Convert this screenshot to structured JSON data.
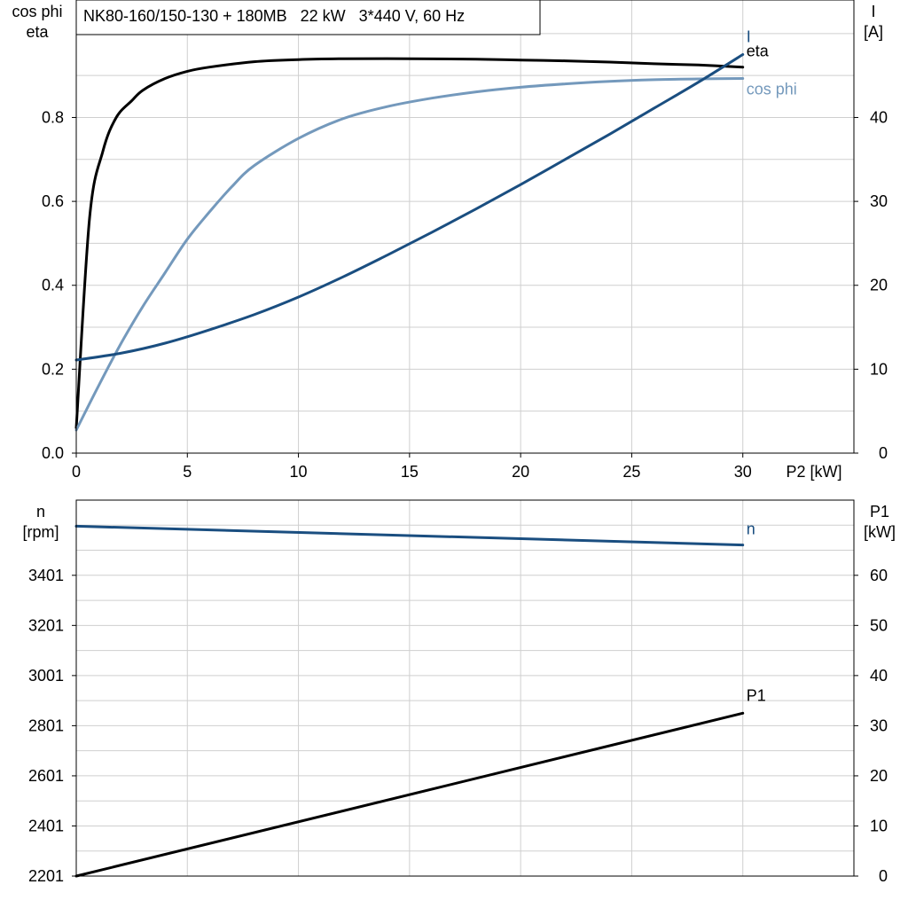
{
  "chart_data": [
    {
      "type": "line",
      "title": "NK80-160/150-130 + 180MB   22 kW   3*440 V, 60 Hz",
      "xlabel": "P2 [kW]",
      "ylabel_left": [
        "cos phi",
        "eta"
      ],
      "ylabel_right": [
        "I",
        "[A]"
      ],
      "xlim": [
        0,
        35
      ],
      "ylim_left": [
        0,
        1.08
      ],
      "ylim_right": [
        0,
        54
      ],
      "x_ticks": [
        "0",
        "5",
        "10",
        "15",
        "20",
        "25",
        "30"
      ],
      "y_ticks_left": [
        "0.0",
        "0.2",
        "0.4",
        "0.6",
        "0.8"
      ],
      "y_ticks_right": [
        "0",
        "10",
        "20",
        "30",
        "40"
      ],
      "grid": true,
      "series": [
        {
          "name": "eta",
          "color": "#000000",
          "axis": "left",
          "x": [
            0,
            0.6,
            1.2,
            1.8,
            2.5,
            3,
            4,
            5,
            6,
            8,
            10,
            12,
            15,
            18,
            20,
            22,
            24,
            26,
            28,
            30
          ],
          "y": [
            0.06,
            0.56,
            0.72,
            0.8,
            0.84,
            0.865,
            0.893,
            0.91,
            0.92,
            0.933,
            0.938,
            0.94,
            0.94,
            0.939,
            0.937,
            0.935,
            0.932,
            0.928,
            0.925,
            0.92
          ]
        },
        {
          "name": "cos phi",
          "color": "#7499bc",
          "axis": "left",
          "x": [
            0,
            1,
            2,
            3,
            4,
            5,
            6,
            7,
            8,
            10,
            12,
            14,
            16,
            18,
            20,
            22,
            24,
            26,
            28,
            30
          ],
          "y": [
            0.055,
            0.16,
            0.26,
            0.35,
            0.43,
            0.51,
            0.575,
            0.635,
            0.685,
            0.75,
            0.797,
            0.826,
            0.846,
            0.861,
            0.872,
            0.88,
            0.886,
            0.89,
            0.892,
            0.893
          ]
        },
        {
          "name": "I",
          "color": "#1a4e80",
          "axis": "right",
          "x": [
            0,
            2,
            4,
            6,
            8,
            10,
            12,
            14,
            16,
            18,
            20,
            22,
            24,
            26,
            28,
            30
          ],
          "y": [
            11.1,
            11.9,
            13.1,
            14.7,
            16.5,
            18.6,
            21,
            23.6,
            26.3,
            29.1,
            32,
            35,
            38,
            41.1,
            44.2,
            47.5
          ]
        }
      ],
      "curve_labels": [
        "I",
        "eta",
        "cos phi"
      ]
    },
    {
      "type": "line",
      "xlim": [
        0,
        35
      ],
      "ylabel_left": [
        "n",
        "[rpm]"
      ],
      "ylabel_right": [
        "P1",
        "[kW]"
      ],
      "ylim_left": [
        2201,
        3701
      ],
      "ylim_right": [
        0,
        75
      ],
      "y_ticks_left": [
        "2201",
        "2401",
        "2601",
        "2801",
        "3001",
        "3201",
        "3401"
      ],
      "y_ticks_right": [
        "0",
        "10",
        "20",
        "30",
        "40",
        "50",
        "60"
      ],
      "grid": true,
      "series": [
        {
          "name": "n",
          "color": "#1a4e80",
          "axis": "left",
          "x": [
            0,
            30
          ],
          "y": [
            3597,
            3522
          ]
        },
        {
          "name": "P1",
          "color": "#000000",
          "axis": "right",
          "x": [
            0,
            30
          ],
          "y": [
            0,
            32.5
          ]
        }
      ],
      "curve_labels": [
        "n",
        "P1"
      ]
    }
  ]
}
